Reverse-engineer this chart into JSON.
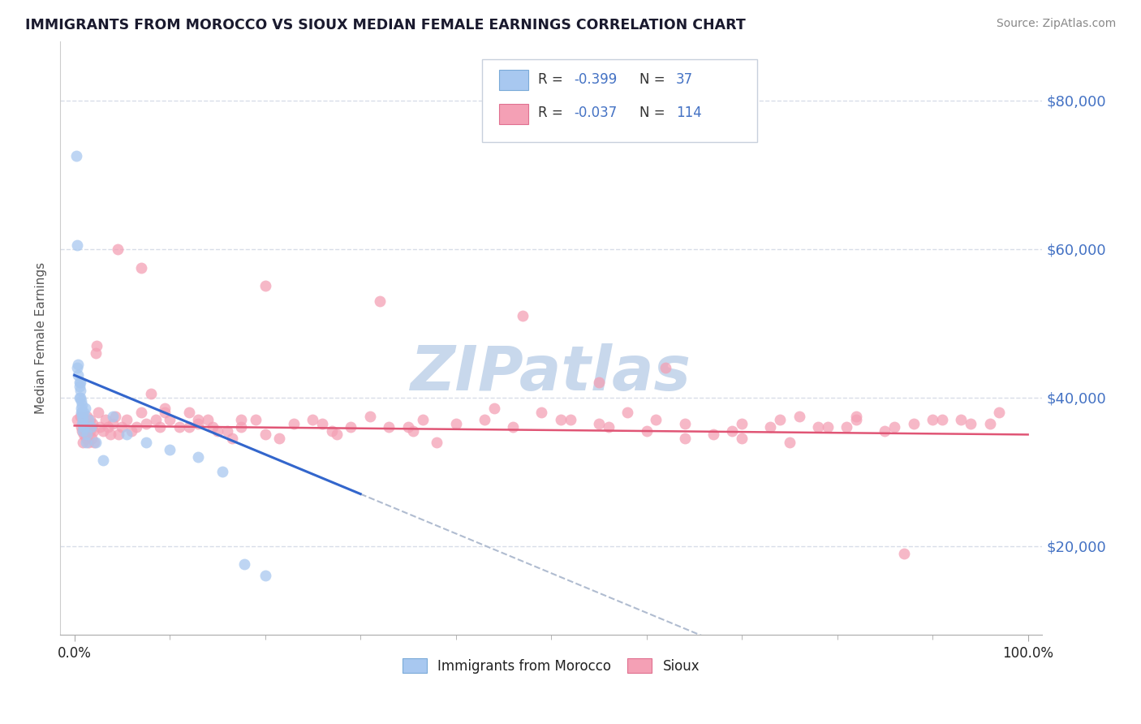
{
  "title": "IMMIGRANTS FROM MOROCCO VS SIOUX MEDIAN FEMALE EARNINGS CORRELATION CHART",
  "source": "Source: ZipAtlas.com",
  "ylabel": "Median Female Earnings",
  "yticks": [
    20000,
    40000,
    60000,
    80000
  ],
  "ytick_labels": [
    "$20,000",
    "$40,000",
    "$60,000",
    "$80,000"
  ],
  "xtick_labels": [
    "0.0%",
    "100.0%"
  ],
  "series1_color": "#a8c8f0",
  "series1_edge": "#7aaad8",
  "series2_color": "#f4a0b5",
  "series2_edge": "#e07090",
  "line1_color": "#3366cc",
  "line2_color": "#e05575",
  "dash_color": "#b0bcd0",
  "watermark_color": "#c8d8ec",
  "background_color": "#ffffff",
  "grid_color": "#d8dde8",
  "legend_box_color": "#f0f4f8",
  "legend_border_color": "#c8d0dc",
  "title_color": "#1a1a2e",
  "source_color": "#888888",
  "label_color": "#555555",
  "tick_color": "#4472c4",
  "morocco_x": [
    0.002,
    0.003,
    0.003,
    0.004,
    0.004,
    0.005,
    0.005,
    0.005,
    0.006,
    0.006,
    0.006,
    0.007,
    0.007,
    0.007,
    0.008,
    0.008,
    0.008,
    0.008,
    0.009,
    0.009,
    0.01,
    0.01,
    0.011,
    0.012,
    0.013,
    0.015,
    0.017,
    0.022,
    0.03,
    0.04,
    0.055,
    0.075,
    0.1,
    0.13,
    0.155,
    0.178,
    0.2
  ],
  "morocco_y": [
    72500,
    60500,
    44000,
    43000,
    44500,
    42000,
    41500,
    40000,
    42000,
    41000,
    40000,
    39500,
    38500,
    38000,
    39000,
    38000,
    37500,
    36500,
    37000,
    35500,
    38000,
    36000,
    38500,
    34000,
    35000,
    37000,
    36000,
    34000,
    31500,
    37500,
    35000,
    34000,
    33000,
    32000,
    30000,
    17500,
    16000
  ],
  "sioux_x": [
    0.003,
    0.006,
    0.007,
    0.008,
    0.009,
    0.01,
    0.01,
    0.011,
    0.012,
    0.013,
    0.013,
    0.014,
    0.015,
    0.016,
    0.016,
    0.017,
    0.018,
    0.019,
    0.02,
    0.021,
    0.022,
    0.023,
    0.025,
    0.027,
    0.03,
    0.033,
    0.035,
    0.038,
    0.04,
    0.043,
    0.046,
    0.05,
    0.055,
    0.06,
    0.065,
    0.07,
    0.075,
    0.08,
    0.085,
    0.09,
    0.095,
    0.1,
    0.11,
    0.12,
    0.13,
    0.14,
    0.15,
    0.165,
    0.175,
    0.19,
    0.2,
    0.215,
    0.23,
    0.25,
    0.27,
    0.29,
    0.31,
    0.33,
    0.355,
    0.38,
    0.4,
    0.43,
    0.46,
    0.49,
    0.52,
    0.55,
    0.58,
    0.61,
    0.64,
    0.67,
    0.7,
    0.73,
    0.76,
    0.79,
    0.82,
    0.85,
    0.88,
    0.91,
    0.94,
    0.97,
    0.13,
    0.145,
    0.16,
    0.175,
    0.26,
    0.275,
    0.35,
    0.365,
    0.44,
    0.51,
    0.56,
    0.6,
    0.64,
    0.7,
    0.74,
    0.78,
    0.82,
    0.86,
    0.9,
    0.96,
    0.045,
    0.07,
    0.095,
    0.12,
    0.2,
    0.32,
    0.47,
    0.55,
    0.62,
    0.69,
    0.75,
    0.81,
    0.87,
    0.93
  ],
  "sioux_y": [
    37000,
    37500,
    36000,
    35500,
    34000,
    35000,
    36500,
    35000,
    34500,
    36000,
    37500,
    35000,
    34000,
    35500,
    37000,
    36000,
    34500,
    36500,
    35500,
    34000,
    46000,
    47000,
    38000,
    36000,
    35500,
    37000,
    36000,
    35000,
    36500,
    37500,
    35000,
    36000,
    37000,
    35500,
    36000,
    38000,
    36500,
    40500,
    37000,
    36000,
    38500,
    37000,
    36000,
    38000,
    36500,
    37000,
    35500,
    34500,
    36000,
    37000,
    35000,
    34500,
    36500,
    37000,
    35500,
    36000,
    37500,
    36000,
    35500,
    34000,
    36500,
    37000,
    36000,
    38000,
    37000,
    36500,
    38000,
    37000,
    36500,
    35000,
    34500,
    36000,
    37500,
    36000,
    37000,
    35500,
    36500,
    37000,
    36500,
    38000,
    37000,
    36000,
    35500,
    37000,
    36500,
    35000,
    36000,
    37000,
    38500,
    37000,
    36000,
    35500,
    34500,
    36500,
    37000,
    36000,
    37500,
    36000,
    37000,
    36500,
    60000,
    57500,
    38000,
    36000,
    55000,
    53000,
    51000,
    42000,
    44000,
    35500,
    34000,
    36000,
    19000,
    37000
  ]
}
